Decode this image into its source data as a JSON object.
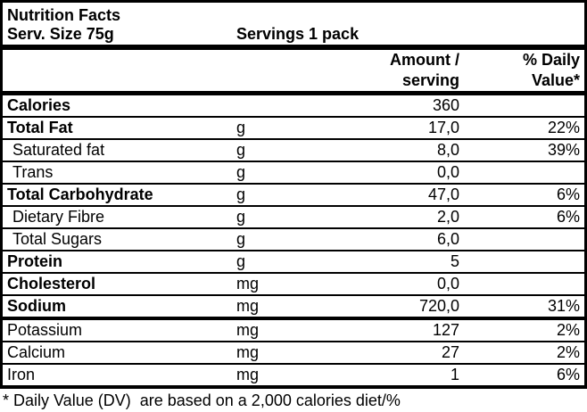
{
  "label": {
    "title": "Nutrition Facts",
    "serving_size": "Serv. Size 75g",
    "servings": "Servings 1 pack",
    "header": {
      "amount_line1": "Amount /",
      "amount_line2": "serving",
      "dv_line1": "% Daily",
      "dv_line2": "Value*"
    },
    "rows": [
      {
        "name": "Calories",
        "unit": "",
        "amount": "360",
        "dv": ""
      },
      {
        "name": "Total Fat",
        "unit": "g",
        "amount": "17,0",
        "dv": "22%"
      },
      {
        "name": "Saturated fat",
        "unit": "g",
        "amount": "8,0",
        "dv": "39%"
      },
      {
        "name": "Trans",
        "unit": "g",
        "amount": "0,0",
        "dv": ""
      },
      {
        "name": "Total Carbohydrate",
        "unit": "g",
        "amount": "47,0",
        "dv": "6%"
      },
      {
        "name": "Dietary Fibre",
        "unit": "g",
        "amount": "2,0",
        "dv": "6%"
      },
      {
        "name": "Total Sugars",
        "unit": "g",
        "amount": "6,0",
        "dv": ""
      },
      {
        "name": "Protein",
        "unit": "g",
        "amount": "5",
        "dv": ""
      },
      {
        "name": "Cholesterol",
        "unit": "mg",
        "amount": "0,0",
        "dv": ""
      },
      {
        "name": "Sodium",
        "unit": "mg",
        "amount": "720,0",
        "dv": "31%"
      },
      {
        "name": "Potassium",
        "unit": "mg",
        "amount": "127",
        "dv": "2%"
      },
      {
        "name": "Calcium",
        "unit": "mg",
        "amount": "27",
        "dv": "2%"
      },
      {
        "name": "Iron",
        "unit": "mg",
        "amount": "1",
        "dv": "6%"
      }
    ],
    "footnote": "* Daily Value (DV)  are based on a 2,000 calories diet/%",
    "colors": {
      "text": "#000000",
      "background": "#ffffff",
      "border": "#000000"
    }
  }
}
